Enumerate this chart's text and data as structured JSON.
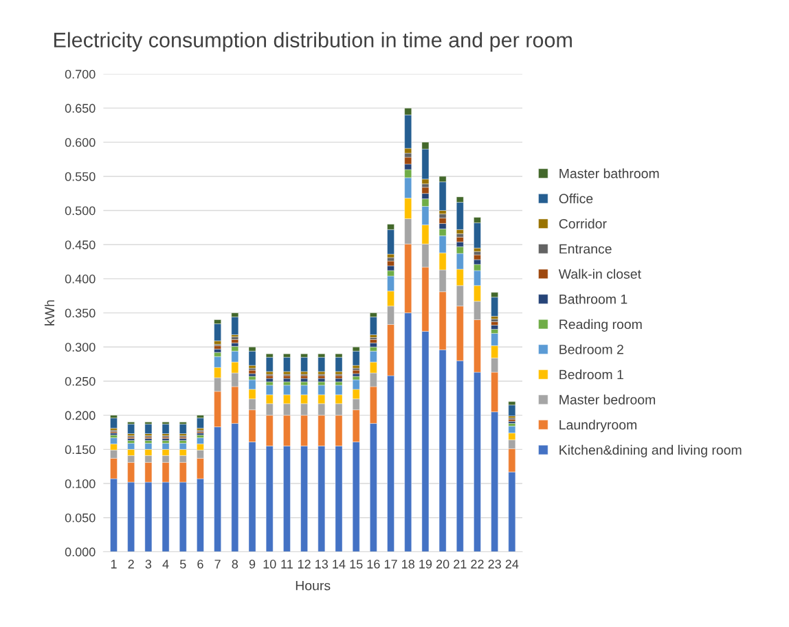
{
  "chart_data": {
    "type": "bar",
    "stacked": true,
    "title": "Electricity consumption distribution in time and per room",
    "xlabel": "Hours",
    "ylabel": "kWh",
    "categories": [
      "1",
      "2",
      "3",
      "4",
      "5",
      "6",
      "7",
      "8",
      "9",
      "10",
      "11",
      "12",
      "13",
      "14",
      "15",
      "16",
      "17",
      "18",
      "19",
      "20",
      "21",
      "22",
      "23",
      "24"
    ],
    "series": [
      {
        "name": "Kitchen&dining and living room",
        "color": "#4472c4",
        "values": [
          0.107,
          0.102,
          0.102,
          0.102,
          0.102,
          0.107,
          0.183,
          0.188,
          0.161,
          0.155,
          0.155,
          0.155,
          0.155,
          0.155,
          0.161,
          0.188,
          0.258,
          0.35,
          0.323,
          0.296,
          0.28,
          0.263,
          0.205,
          0.117
        ]
      },
      {
        "name": "Laundryroom",
        "color": "#ed7d31",
        "values": [
          0.03,
          0.029,
          0.029,
          0.029,
          0.029,
          0.03,
          0.052,
          0.054,
          0.047,
          0.045,
          0.045,
          0.045,
          0.045,
          0.045,
          0.047,
          0.054,
          0.075,
          0.101,
          0.094,
          0.085,
          0.08,
          0.077,
          0.058,
          0.034
        ]
      },
      {
        "name": "Master bedroom",
        "color": "#a5a5a5",
        "values": [
          0.012,
          0.01,
          0.01,
          0.01,
          0.01,
          0.012,
          0.02,
          0.02,
          0.016,
          0.017,
          0.017,
          0.017,
          0.017,
          0.017,
          0.016,
          0.02,
          0.027,
          0.037,
          0.034,
          0.032,
          0.03,
          0.027,
          0.021,
          0.013
        ]
      },
      {
        "name": "Bedroom 1",
        "color": "#ffc000",
        "values": [
          0.009,
          0.009,
          0.009,
          0.009,
          0.009,
          0.009,
          0.015,
          0.016,
          0.014,
          0.013,
          0.013,
          0.013,
          0.013,
          0.013,
          0.014,
          0.016,
          0.022,
          0.03,
          0.028,
          0.025,
          0.024,
          0.023,
          0.018,
          0.01
        ]
      },
      {
        "name": "Bedroom 2",
        "color": "#5b9bd5",
        "values": [
          0.009,
          0.009,
          0.009,
          0.009,
          0.009,
          0.009,
          0.016,
          0.016,
          0.014,
          0.014,
          0.014,
          0.014,
          0.014,
          0.014,
          0.014,
          0.016,
          0.022,
          0.03,
          0.027,
          0.025,
          0.023,
          0.022,
          0.018,
          0.01
        ]
      },
      {
        "name": "Reading room",
        "color": "#70ad47",
        "values": [
          0.004,
          0.004,
          0.004,
          0.004,
          0.004,
          0.004,
          0.006,
          0.007,
          0.005,
          0.005,
          0.005,
          0.005,
          0.005,
          0.005,
          0.005,
          0.006,
          0.008,
          0.012,
          0.011,
          0.01,
          0.01,
          0.009,
          0.006,
          0.004
        ]
      },
      {
        "name": "Bathroom 1",
        "color": "#264478",
        "values": [
          0.003,
          0.003,
          0.003,
          0.003,
          0.003,
          0.003,
          0.005,
          0.005,
          0.004,
          0.005,
          0.005,
          0.005,
          0.005,
          0.005,
          0.004,
          0.006,
          0.007,
          0.008,
          0.008,
          0.008,
          0.007,
          0.007,
          0.006,
          0.003
        ]
      },
      {
        "name": "Walk-in closet",
        "color": "#9e480e",
        "values": [
          0.002,
          0.002,
          0.002,
          0.002,
          0.002,
          0.002,
          0.005,
          0.005,
          0.005,
          0.004,
          0.004,
          0.004,
          0.004,
          0.004,
          0.005,
          0.005,
          0.007,
          0.01,
          0.009,
          0.008,
          0.007,
          0.007,
          0.005,
          0.003
        ]
      },
      {
        "name": "Entrance",
        "color": "#636363",
        "values": [
          0.002,
          0.002,
          0.002,
          0.002,
          0.002,
          0.002,
          0.002,
          0.004,
          0.003,
          0.002,
          0.002,
          0.002,
          0.002,
          0.002,
          0.003,
          0.003,
          0.005,
          0.006,
          0.005,
          0.006,
          0.005,
          0.005,
          0.004,
          0.002
        ]
      },
      {
        "name": "Corridor",
        "color": "#997300",
        "values": [
          0.003,
          0.003,
          0.003,
          0.003,
          0.003,
          0.003,
          0.005,
          0.003,
          0.004,
          0.004,
          0.004,
          0.004,
          0.004,
          0.004,
          0.004,
          0.004,
          0.005,
          0.007,
          0.007,
          0.005,
          0.006,
          0.005,
          0.004,
          0.003
        ]
      },
      {
        "name": "Office",
        "color": "#255e91",
        "values": [
          0.015,
          0.014,
          0.014,
          0.014,
          0.014,
          0.015,
          0.025,
          0.026,
          0.021,
          0.021,
          0.021,
          0.021,
          0.021,
          0.021,
          0.021,
          0.026,
          0.036,
          0.049,
          0.044,
          0.042,
          0.04,
          0.037,
          0.028,
          0.016
        ]
      },
      {
        "name": "Master bathroom",
        "color": "#43682b",
        "values": [
          0.004,
          0.003,
          0.003,
          0.003,
          0.003,
          0.004,
          0.006,
          0.006,
          0.006,
          0.005,
          0.005,
          0.005,
          0.005,
          0.005,
          0.006,
          0.006,
          0.008,
          0.01,
          0.01,
          0.008,
          0.008,
          0.008,
          0.007,
          0.005
        ]
      }
    ],
    "ylim": [
      0,
      0.7
    ],
    "yticks": [
      {
        "value": 0,
        "label": "0.000"
      },
      {
        "value": 0.05,
        "label": "0.050"
      },
      {
        "value": 0.1,
        "label": "0.100"
      },
      {
        "value": 0.15,
        "label": "0.150"
      },
      {
        "value": 0.2,
        "label": "0.200"
      },
      {
        "value": 0.25,
        "label": "0.250"
      },
      {
        "value": 0.3,
        "label": "0.300"
      },
      {
        "value": 0.35,
        "label": "0.350"
      },
      {
        "value": 0.4,
        "label": "0.400"
      },
      {
        "value": 0.45,
        "label": "0.450"
      },
      {
        "value": 0.5,
        "label": "0.500"
      },
      {
        "value": 0.55,
        "label": "0.550"
      },
      {
        "value": 0.6,
        "label": "0.600"
      },
      {
        "value": 0.65,
        "label": "0.650"
      },
      {
        "value": 0.7,
        "label": "0.700"
      }
    ],
    "grid": "y",
    "legend": "right"
  }
}
